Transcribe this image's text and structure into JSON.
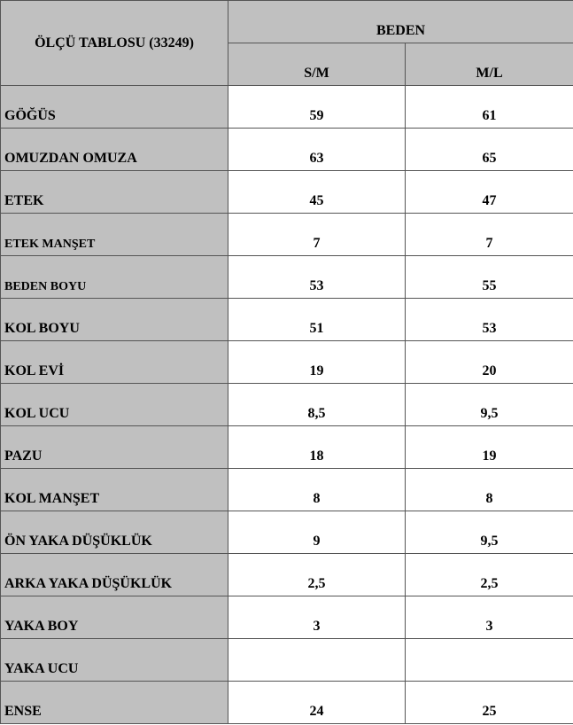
{
  "header": {
    "title": "ÖLÇÜ TABLOSU (33249)",
    "group": "BEDEN",
    "columns": [
      "S/M",
      "M/L"
    ]
  },
  "table": {
    "rows": [
      [
        "GÖĞÜS",
        "59",
        "61"
      ],
      [
        "OMUZDAN OMUZA",
        "63",
        "65"
      ],
      [
        "ETEK",
        "45",
        "47"
      ],
      [
        "ETEK MANŞET",
        "7",
        "7"
      ],
      [
        "BEDEN BOYU",
        "53",
        "55"
      ],
      [
        "KOL BOYU",
        "51",
        "53"
      ],
      [
        "KOL EVİ",
        "19",
        "20"
      ],
      [
        "KOL UCU",
        "8,5",
        "9,5"
      ],
      [
        "PAZU",
        "18",
        "19"
      ],
      [
        "KOL MANŞET",
        "8",
        "8"
      ],
      [
        "ÖN YAKA DÜŞÜKLÜK",
        "9",
        "9,5"
      ],
      [
        "ARKA YAKA DÜŞÜKLÜK",
        "2,5",
        "2,5"
      ],
      [
        "YAKA BOY",
        "3",
        "3"
      ],
      [
        "YAKA UCU",
        null,
        null
      ],
      [
        "ENSE",
        "24",
        "25"
      ]
    ]
  }
}
